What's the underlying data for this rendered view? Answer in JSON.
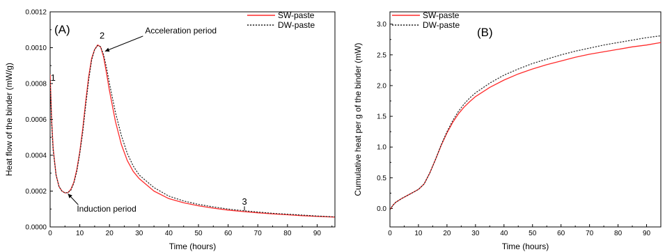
{
  "chart_data": [
    {
      "type": "line",
      "panel_label": "(A)",
      "xlabel": "Time (hours)",
      "ylabel": "Heat flow of the binder (mW/g)",
      "xlim": [
        0,
        96
      ],
      "ylim": [
        0,
        0.0012
      ],
      "xticks": [
        0,
        10,
        20,
        30,
        40,
        50,
        60,
        70,
        80,
        90
      ],
      "xtick_labels": [
        "0",
        "10",
        "20",
        "30",
        "40",
        "50",
        "60",
        "70",
        "80",
        "90"
      ],
      "yticks": [
        0,
        0.0002,
        0.0004,
        0.0006,
        0.0008,
        0.001,
        0.0012
      ],
      "ytick_labels": [
        "0.0000",
        "0.0002",
        "0.0004",
        "0.0006",
        "0.0008",
        "0.0010",
        "0.0012"
      ],
      "legend_position": "top-right",
      "series": [
        {
          "name": "SW-paste",
          "color": "#ff2a2a",
          "dash": "solid",
          "x": [
            0,
            0.5,
            1,
            2,
            3,
            4,
            5,
            6,
            7,
            8,
            9,
            10,
            11,
            12,
            13,
            14,
            15,
            16,
            17,
            18,
            19,
            20,
            22,
            24,
            26,
            28,
            30,
            35,
            40,
            45,
            50,
            55,
            60,
            65,
            70,
            75,
            80,
            85,
            90,
            96
          ],
          "y": [
            0.00085,
            0.0006,
            0.00044,
            0.00029,
            0.000225,
            0.0002,
            0.00019,
            0.000192,
            0.00021,
            0.00025,
            0.00032,
            0.00042,
            0.00055,
            0.0007,
            0.00084,
            0.00094,
            0.00099,
            0.001015,
            0.001005,
            0.00095,
            0.00086,
            0.00076,
            0.00059,
            0.00046,
            0.00037,
            0.00031,
            0.00027,
            0.0002,
            0.000158,
            0.000135,
            0.000118,
            0.000105,
            9.4e-05,
            8.6e-05,
            7.9e-05,
            7.3e-05,
            6.8e-05,
            6.3e-05,
            5.9e-05,
            5.5e-05
          ]
        },
        {
          "name": "DW-paste",
          "color": "#222222",
          "dash": "dotted",
          "x": [
            0,
            0.5,
            1,
            2,
            3,
            4,
            5,
            6,
            7,
            8,
            9,
            10,
            11,
            12,
            13,
            14,
            15,
            16,
            17,
            18,
            19,
            20,
            22,
            24,
            26,
            28,
            30,
            35,
            40,
            45,
            50,
            55,
            60,
            65,
            70,
            75,
            80,
            85,
            90,
            96
          ],
          "y": [
            0.00082,
            0.00059,
            0.00043,
            0.00029,
            0.000225,
            0.0002,
            0.00019,
            0.000192,
            0.000205,
            0.000245,
            0.00031,
            0.00041,
            0.00053,
            0.00068,
            0.00082,
            0.00093,
            0.00099,
            0.001012,
            0.001005,
            0.000962,
            0.00089,
            0.0008,
            0.00064,
            0.00051,
            0.00041,
            0.00034,
            0.00029,
            0.00022,
            0.000172,
            0.000145,
            0.000126,
            0.000112,
            0.0001,
            9.1e-05,
            8.3e-05,
            7.6e-05,
            7.1e-05,
            6.6e-05,
            6.1e-05,
            5.6e-05
          ]
        }
      ],
      "annotations": [
        {
          "id": "p1",
          "text": "1",
          "x": 1.0,
          "y": 0.000815,
          "kind": "point-label"
        },
        {
          "id": "p2",
          "text": "2",
          "x": 17.5,
          "y": 0.00105,
          "kind": "point-label"
        },
        {
          "id": "p3",
          "text": "3",
          "x": 65.5,
          "y": 0.000125,
          "kind": "point-label"
        },
        {
          "id": "accel",
          "text": "Acceleration period",
          "text_x": 32,
          "text_y": 0.00108,
          "arrow_x": 18.5,
          "arrow_y": 0.00098,
          "kind": "arrow-label"
        },
        {
          "id": "induct",
          "text": "Induction period",
          "text_x": 9,
          "text_y": 8.5e-05,
          "arrow_x": 6,
          "arrow_y": 0.000185,
          "kind": "arrow-label"
        }
      ]
    },
    {
      "type": "line",
      "panel_label": "(B)",
      "xlabel": "Time (hours)",
      "ylabel": "Cumulative heat per g of the binder (mW)",
      "xlim": [
        0,
        95
      ],
      "ylim": [
        -0.3,
        3.2
      ],
      "xticks": [
        0,
        10,
        20,
        30,
        40,
        50,
        60,
        70,
        80,
        90
      ],
      "xtick_labels": [
        "0",
        "10",
        "20",
        "30",
        "40",
        "50",
        "60",
        "70",
        "80",
        "90"
      ],
      "yticks": [
        0,
        0.5,
        1.0,
        1.5,
        2.0,
        2.5,
        3.0
      ],
      "ytick_labels": [
        "0.0",
        "0.5",
        "1.0",
        "1.5",
        "2.0",
        "2.5",
        "3.0"
      ],
      "legend_position": "top-left",
      "series": [
        {
          "name": "SW-paste",
          "color": "#ff2a2a",
          "dash": "solid",
          "x": [
            0,
            1,
            2,
            4,
            6,
            8,
            10,
            12,
            14,
            16,
            18,
            20,
            22,
            24,
            26,
            28,
            30,
            35,
            40,
            45,
            50,
            55,
            60,
            65,
            70,
            75,
            80,
            85,
            90,
            95
          ],
          "y": [
            -0.02,
            0.05,
            0.1,
            0.16,
            0.21,
            0.26,
            0.31,
            0.4,
            0.58,
            0.8,
            1.03,
            1.23,
            1.4,
            1.54,
            1.65,
            1.74,
            1.82,
            1.97,
            2.09,
            2.19,
            2.27,
            2.34,
            2.4,
            2.46,
            2.51,
            2.55,
            2.59,
            2.63,
            2.66,
            2.7
          ]
        },
        {
          "name": "DW-paste",
          "color": "#222222",
          "dash": "dotted",
          "x": [
            0,
            1,
            2,
            4,
            6,
            8,
            10,
            12,
            14,
            16,
            18,
            20,
            22,
            24,
            26,
            28,
            30,
            35,
            40,
            45,
            50,
            55,
            60,
            65,
            70,
            75,
            80,
            85,
            90,
            95
          ],
          "y": [
            -0.02,
            0.05,
            0.1,
            0.16,
            0.21,
            0.26,
            0.31,
            0.4,
            0.58,
            0.8,
            1.04,
            1.25,
            1.43,
            1.58,
            1.7,
            1.8,
            1.88,
            2.04,
            2.17,
            2.27,
            2.36,
            2.43,
            2.5,
            2.56,
            2.61,
            2.66,
            2.7,
            2.74,
            2.78,
            2.81
          ]
        }
      ],
      "annotations": []
    }
  ]
}
